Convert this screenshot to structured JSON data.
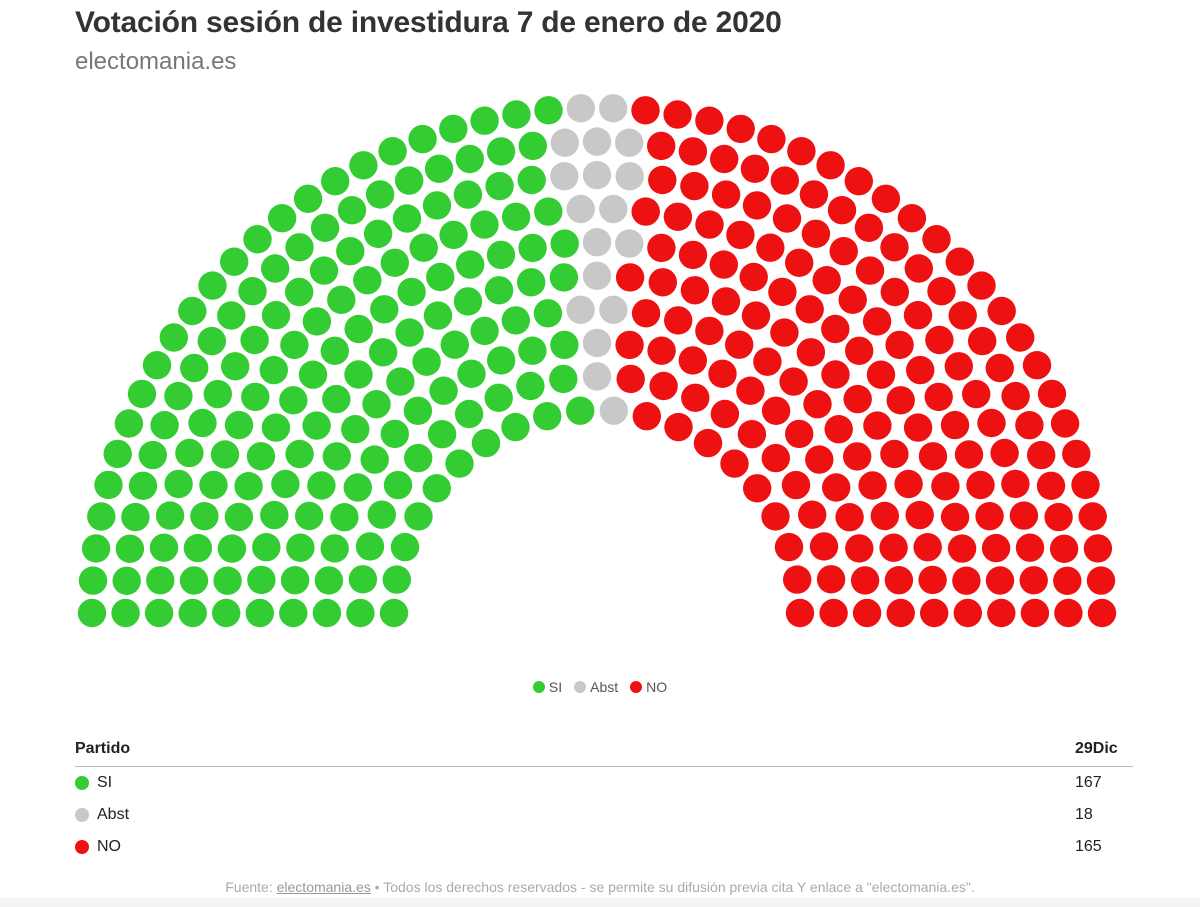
{
  "title": "Votación sesión de investidura 7 de enero de 2020",
  "subtitle": "electomania.es",
  "chart_data": {
    "type": "parliament",
    "total_seats": 350,
    "series": [
      {
        "name": "SI",
        "value": 167,
        "color": "#33cc33"
      },
      {
        "name": "Abst",
        "value": 18,
        "color": "#c8c8c8"
      },
      {
        "name": "NO",
        "value": 165,
        "color": "#ee1111"
      }
    ]
  },
  "table": {
    "header_party": "Partido",
    "header_value": "29Dic",
    "rows": [
      {
        "label": "SI",
        "value": "167",
        "color": "#33cc33"
      },
      {
        "label": "Abst",
        "value": "18",
        "color": "#c8c8c8"
      },
      {
        "label": "NO",
        "value": "165",
        "color": "#ee1111"
      }
    ]
  },
  "footer": {
    "prefix": "Fuente: ",
    "link": "electomania.es",
    "suffix": " • Todos los derechos reservados - se permite su difusión previa cita Y enlace a \"electomania.es\"."
  }
}
